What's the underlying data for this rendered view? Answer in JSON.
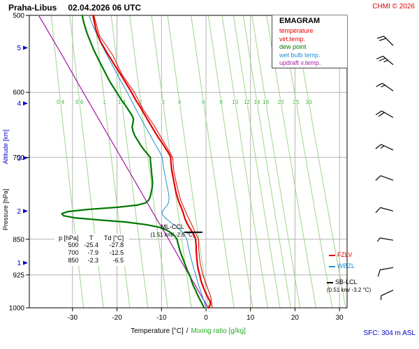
{
  "header": {
    "station": "Praha-Libus",
    "datetime": "02.04.2026 06 UTC",
    "copyright": "CHMI © 2026"
  },
  "legend": {
    "title": "EMAGRAM",
    "items": [
      {
        "label": "temperature",
        "color": "#e00000"
      },
      {
        "label": "virt.temp.",
        "color": "#e00000"
      },
      {
        "label": "dew point",
        "color": "#007700"
      },
      {
        "label": "wet bulb temp.",
        "color": "#2090d0"
      },
      {
        "label": "updraft v.temp.",
        "color": "#aa22aa"
      }
    ]
  },
  "axes": {
    "pressure_label": "Pressure [hPa]",
    "altitude_label": "Altitude [km]",
    "temp_label": "Temperature [°C]",
    "separator": "/",
    "mixing_label": "Mixing ratio [g/kg]",
    "sfc_label": "SFC: 304 m ASL"
  },
  "table": {
    "headers": [
      "p [hPa]",
      "T",
      "Td [°C]"
    ],
    "rows": [
      [
        "500",
        "-25.4",
        "-27.8"
      ],
      [
        "700",
        "-7.9",
        "-12.5"
      ],
      [
        "850",
        "-2.3",
        "-6.5"
      ]
    ]
  },
  "annotations": {
    "mlccl_line1": "ML-CCL",
    "mlccl_line2": "(1.51 km/ -2.6 °C)",
    "sblcl_line1": "SB-LCL",
    "sblcl_line2": "(0.51 km/ -3.2 °C)",
    "fzlv": "FZLV",
    "wbzl": "WBZL"
  },
  "chart_data": {
    "type": "line",
    "title": "Emagram sounding Praha-Libus 02.04.2026 06 UTC",
    "xlabel": "Temperature [°C] / Mixing ratio [g/kg]",
    "ylabel": "Pressure [hPa] / Altitude [km]",
    "xlim": [
      -39.7,
      31.7
    ],
    "plim": [
      500,
      1000
    ],
    "temp_ticks": [
      -30,
      -20,
      -10,
      0,
      10,
      20,
      30
    ],
    "pressure_ticks": [
      500,
      600,
      700,
      850,
      925,
      1000
    ],
    "altitude_ticks": [
      {
        "km": 1,
        "p": 899
      },
      {
        "km": 2,
        "p": 795
      },
      {
        "km": 3,
        "p": 701
      },
      {
        "km": 4,
        "p": 616
      },
      {
        "km": 5,
        "p": 540
      }
    ],
    "mixing_ratios": [
      0.4,
      0.6,
      1,
      1.4,
      2,
      3,
      4,
      6,
      8,
      10,
      12,
      14,
      16,
      20,
      25,
      30
    ],
    "grid_color": "#b4b4b4",
    "frame_color": "#000000",
    "mixing_color": "#9ed48a",
    "mixing_label_color": "#3cb43c",
    "altitude_color": "#0000cc",
    "barb_color": "#000000",
    "ccl_marker": {
      "p": 836,
      "t1": -4.9,
      "t2": -0.8
    },
    "series": [
      {
        "id": "updraft",
        "name": "updraft v.temp.",
        "color": "#aa22aa",
        "width": 1.3,
        "points": [
          [
            1000,
            0.5
          ],
          [
            950,
            -2.3
          ],
          [
            925,
            -3.8
          ],
          [
            900,
            -5.3
          ],
          [
            850,
            -8.4
          ],
          [
            800,
            -11.8
          ],
          [
            750,
            -15.3
          ],
          [
            700,
            -19.1
          ],
          [
            650,
            -23.2
          ],
          [
            600,
            -27.6
          ],
          [
            550,
            -32.3
          ],
          [
            500,
            -37.6
          ]
        ]
      },
      {
        "id": "wetbulb",
        "name": "wet bulb temp.",
        "color": "#2090d0",
        "width": 1,
        "points": [
          [
            1000,
            0.0
          ],
          [
            985,
            -0.4
          ],
          [
            970,
            -0.9
          ],
          [
            955,
            -1.4
          ],
          [
            940,
            -1.9
          ],
          [
            925,
            -2.3
          ],
          [
            910,
            -2.8
          ],
          [
            895,
            -3.2
          ],
          [
            880,
            -3.6
          ],
          [
            865,
            -4.0
          ],
          [
            850,
            -4.3
          ],
          [
            842,
            -4.8
          ],
          [
            834,
            -5.5
          ],
          [
            826,
            -6.5
          ],
          [
            818,
            -7.7
          ],
          [
            810,
            -8.9
          ],
          [
            803,
            -9.7
          ],
          [
            797,
            -9.9
          ],
          [
            791,
            -9.4
          ],
          [
            785,
            -8.8
          ],
          [
            779,
            -8.4
          ],
          [
            771,
            -8.3
          ],
          [
            763,
            -8.4
          ],
          [
            755,
            -8.6
          ],
          [
            747,
            -8.8
          ],
          [
            739,
            -9.0
          ],
          [
            731,
            -9.2
          ],
          [
            723,
            -9.4
          ],
          [
            715,
            -9.6
          ],
          [
            707,
            -9.7
          ],
          [
            700,
            -9.8
          ],
          [
            690,
            -10.5
          ],
          [
            680,
            -11.3
          ],
          [
            670,
            -12.1
          ],
          [
            660,
            -12.9
          ],
          [
            650,
            -13.7
          ],
          [
            640,
            -14.5
          ],
          [
            630,
            -15.3
          ],
          [
            620,
            -16.1
          ],
          [
            610,
            -16.9
          ],
          [
            600,
            -17.7
          ],
          [
            590,
            -18.6
          ],
          [
            580,
            -19.5
          ],
          [
            570,
            -20.4
          ],
          [
            560,
            -21.3
          ],
          [
            550,
            -22.2
          ],
          [
            540,
            -23.1
          ],
          [
            530,
            -24.0
          ],
          [
            520,
            -24.8
          ],
          [
            510,
            -25.6
          ],
          [
            500,
            -26.3
          ]
        ]
      },
      {
        "id": "virt_temp",
        "name": "virt.temp.",
        "color": "#e00000",
        "width": 1,
        "points": [
          [
            1000,
            1.4
          ],
          [
            975,
            1.1
          ],
          [
            950,
            0.2
          ],
          [
            925,
            -0.7
          ],
          [
            900,
            -1.3
          ],
          [
            875,
            -1.6
          ],
          [
            850,
            -1.7
          ],
          [
            825,
            -3.0
          ],
          [
            800,
            -4.4
          ],
          [
            775,
            -5.7
          ],
          [
            750,
            -6.5
          ],
          [
            725,
            -7.2
          ],
          [
            700,
            -7.5
          ],
          [
            675,
            -9.5
          ],
          [
            650,
            -11.6
          ],
          [
            625,
            -14.1
          ],
          [
            600,
            -16.1
          ],
          [
            575,
            -18.9
          ],
          [
            550,
            -20.9
          ],
          [
            525,
            -23.9
          ],
          [
            500,
            -25.2
          ]
        ]
      },
      {
        "id": "dewpoint",
        "name": "dew point",
        "color": "#007700",
        "width": 2.2,
        "points": [
          [
            1000,
            -0.4
          ],
          [
            990,
            -0.9
          ],
          [
            980,
            -1.4
          ],
          [
            970,
            -1.9
          ],
          [
            960,
            -2.3
          ],
          [
            950,
            -2.8
          ],
          [
            940,
            -3.2
          ],
          [
            930,
            -3.5
          ],
          [
            925,
            -3.7
          ],
          [
            915,
            -4.2
          ],
          [
            905,
            -4.6
          ],
          [
            895,
            -5.0
          ],
          [
            885,
            -5.4
          ],
          [
            875,
            -5.8
          ],
          [
            865,
            -6.1
          ],
          [
            855,
            -6.4
          ],
          [
            850,
            -6.5
          ],
          [
            844,
            -7.0
          ],
          [
            838,
            -7.7
          ],
          [
            832,
            -8.8
          ],
          [
            826,
            -10.6
          ],
          [
            821,
            -13.5
          ],
          [
            816,
            -18.0
          ],
          [
            812,
            -24.0
          ],
          [
            808,
            -29.5
          ],
          [
            804,
            -32.0
          ],
          [
            800,
            -32.4
          ],
          [
            796,
            -31.0
          ],
          [
            792,
            -26.5
          ],
          [
            788,
            -20.0
          ],
          [
            784,
            -15.5
          ],
          [
            780,
            -13.6
          ],
          [
            775,
            -12.9
          ],
          [
            768,
            -12.5
          ],
          [
            760,
            -12.3
          ],
          [
            752,
            -12.1
          ],
          [
            744,
            -12.0
          ],
          [
            736,
            -12.1
          ],
          [
            728,
            -12.2
          ],
          [
            720,
            -12.3
          ],
          [
            712,
            -12.4
          ],
          [
            704,
            -12.5
          ],
          [
            700,
            -12.5
          ],
          [
            693,
            -13.3
          ],
          [
            686,
            -14.1
          ],
          [
            679,
            -14.8
          ],
          [
            672,
            -15.4
          ],
          [
            665,
            -16.0
          ],
          [
            658,
            -16.4
          ],
          [
            651,
            -16.6
          ],
          [
            645,
            -16.4
          ],
          [
            639,
            -16.3
          ],
          [
            633,
            -16.7
          ],
          [
            627,
            -17.3
          ],
          [
            620,
            -18.0
          ],
          [
            613,
            -18.8
          ],
          [
            606,
            -19.5
          ],
          [
            599,
            -20.2
          ],
          [
            592,
            -20.9
          ],
          [
            585,
            -21.6
          ],
          [
            578,
            -22.2
          ],
          [
            571,
            -22.8
          ],
          [
            564,
            -23.4
          ],
          [
            557,
            -24.0
          ],
          [
            550,
            -24.6
          ],
          [
            543,
            -25.2
          ],
          [
            536,
            -25.7
          ],
          [
            529,
            -26.2
          ],
          [
            522,
            -26.7
          ],
          [
            515,
            -27.1
          ],
          [
            508,
            -27.5
          ],
          [
            500,
            -27.8
          ]
        ]
      },
      {
        "id": "temperature",
        "name": "temperature",
        "color": "#e00000",
        "width": 2.2,
        "points": [
          [
            1000,
            0.6
          ],
          [
            992,
            1.0
          ],
          [
            984,
            0.9
          ],
          [
            975,
            0.4
          ],
          [
            965,
            -0.1
          ],
          [
            955,
            -0.5
          ],
          [
            945,
            -0.9
          ],
          [
            935,
            -1.2
          ],
          [
            925,
            -1.4
          ],
          [
            915,
            -1.7
          ],
          [
            905,
            -1.9
          ],
          [
            895,
            -2.0
          ],
          [
            885,
            -2.1
          ],
          [
            875,
            -2.2
          ],
          [
            865,
            -2.2
          ],
          [
            855,
            -2.3
          ],
          [
            850,
            -2.3
          ],
          [
            842,
            -2.7
          ],
          [
            834,
            -3.2
          ],
          [
            826,
            -3.8
          ],
          [
            818,
            -4.3
          ],
          [
            810,
            -4.7
          ],
          [
            802,
            -5.0
          ],
          [
            794,
            -5.3
          ],
          [
            786,
            -5.7
          ],
          [
            778,
            -6.1
          ],
          [
            770,
            -6.4
          ],
          [
            762,
            -6.7
          ],
          [
            754,
            -6.9
          ],
          [
            746,
            -7.1
          ],
          [
            738,
            -7.3
          ],
          [
            730,
            -7.5
          ],
          [
            722,
            -7.7
          ],
          [
            714,
            -7.8
          ],
          [
            706,
            -7.9
          ],
          [
            700,
            -7.9
          ],
          [
            692,
            -8.5
          ],
          [
            684,
            -9.2
          ],
          [
            676,
            -9.9
          ],
          [
            668,
            -10.7
          ],
          [
            660,
            -11.4
          ],
          [
            652,
            -12.1
          ],
          [
            644,
            -12.8
          ],
          [
            636,
            -13.5
          ],
          [
            628,
            -14.2
          ],
          [
            620,
            -14.9
          ],
          [
            612,
            -15.7
          ],
          [
            604,
            -16.4
          ],
          [
            596,
            -17.1
          ],
          [
            588,
            -17.9
          ],
          [
            580,
            -18.7
          ],
          [
            572,
            -19.5
          ],
          [
            564,
            -20.4
          ],
          [
            556,
            -21.2
          ],
          [
            548,
            -22.1
          ],
          [
            540,
            -22.9
          ],
          [
            532,
            -23.7
          ],
          [
            524,
            -24.3
          ],
          [
            516,
            -24.8
          ],
          [
            508,
            -25.1
          ],
          [
            500,
            -25.4
          ]
        ]
      }
    ],
    "wind_barbs": [
      {
        "p": 537,
        "dir": 225,
        "full": 2,
        "half": 0
      },
      {
        "p": 562,
        "dir": 220,
        "full": 2,
        "half": 1
      },
      {
        "p": 598,
        "dir": 215,
        "full": 1,
        "half": 1
      },
      {
        "p": 637,
        "dir": 210,
        "full": 2,
        "half": 0
      },
      {
        "p": 688,
        "dir": 205,
        "full": 1,
        "half": 1
      },
      {
        "p": 739,
        "dir": 200,
        "full": 1,
        "half": 0
      },
      {
        "p": 795,
        "dir": 195,
        "full": 1,
        "half": 0
      },
      {
        "p": 852,
        "dir": 190,
        "full": 0,
        "half": 1
      },
      {
        "p": 909,
        "dir": 170,
        "full": 1,
        "half": 0
      },
      {
        "p": 959,
        "dir": 155,
        "full": 0,
        "half": 1
      }
    ]
  }
}
